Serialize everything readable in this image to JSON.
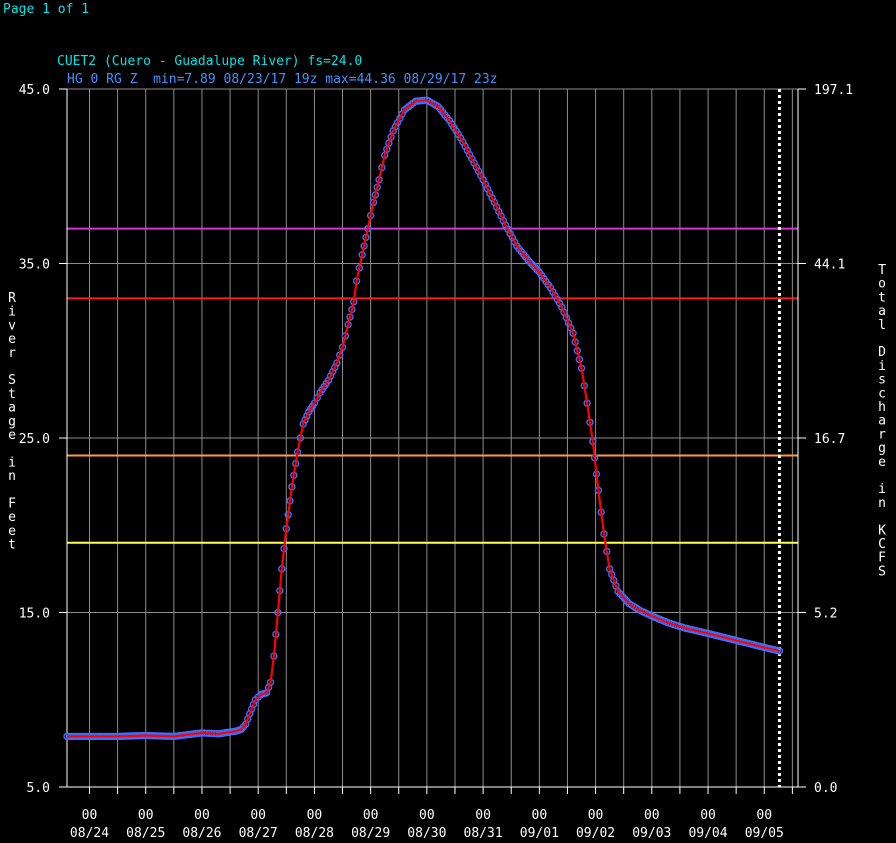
{
  "page_label": "Page 1 of 1",
  "chart_data": {
    "type": "line",
    "title": "CUET2 (Cuero - Guadalupe River) fs=24.0",
    "subtitle": "HG 0 RG Z  min=7.89 08/23/17 19z max=44.36 08/29/17 23z",
    "ylabel": "River Stage in Feet",
    "y2label": "Total Discharge in KCFS",
    "ylim": [
      5.0,
      45.0
    ],
    "y_ticks": [
      "5.0",
      "15.0",
      "25.0",
      "35.0",
      "45.0"
    ],
    "y2_ticks": [
      "0.0",
      "5.2",
      "16.7",
      "44.1",
      "197.1"
    ],
    "x_units": "days since 08/24 00z",
    "xlim": [
      -0.4,
      12.6
    ],
    "x_ticks": [
      {
        "hour": "00",
        "date": "08/24"
      },
      {
        "hour": "00",
        "date": "08/25"
      },
      {
        "hour": "00",
        "date": "08/26"
      },
      {
        "hour": "00",
        "date": "08/27"
      },
      {
        "hour": "00",
        "date": "08/28"
      },
      {
        "hour": "00",
        "date": "08/29"
      },
      {
        "hour": "00",
        "date": "08/30"
      },
      {
        "hour": "00",
        "date": "08/31"
      },
      {
        "hour": "00",
        "date": "09/01"
      },
      {
        "hour": "00",
        "date": "09/02"
      },
      {
        "hour": "00",
        "date": "09/03"
      },
      {
        "hour": "00",
        "date": "09/04"
      },
      {
        "hour": "00",
        "date": "09/05"
      }
    ],
    "thresholds": [
      {
        "value": 37.0,
        "color": "#d633d6"
      },
      {
        "value": 33.0,
        "color": "#ff1a1a"
      },
      {
        "value": 24.0,
        "color": "#ff9a40"
      },
      {
        "value": 19.0,
        "color": "#ffff55"
      }
    ],
    "current_time_x": 12.27,
    "grid": true,
    "series": [
      {
        "line_color": "#ff0000",
        "marker_color": "#3f6fff",
        "points": [
          [
            -0.4,
            7.9
          ],
          [
            0.5,
            7.9
          ],
          [
            1.0,
            7.95
          ],
          [
            1.5,
            7.9
          ],
          [
            2.0,
            8.1
          ],
          [
            2.3,
            8.05
          ],
          [
            2.6,
            8.2
          ],
          [
            2.7,
            8.3
          ],
          [
            2.78,
            8.6
          ],
          [
            2.85,
            9.2
          ],
          [
            2.95,
            10.0
          ],
          [
            3.05,
            10.3
          ],
          [
            3.15,
            10.4
          ],
          [
            3.22,
            11.0
          ],
          [
            3.28,
            12.5
          ],
          [
            3.35,
            15.0
          ],
          [
            3.42,
            17.5
          ],
          [
            3.5,
            19.8
          ],
          [
            3.6,
            22.2
          ],
          [
            3.7,
            24.2
          ],
          [
            3.8,
            25.8
          ],
          [
            3.9,
            26.5
          ],
          [
            4.0,
            27.0
          ],
          [
            4.1,
            27.6
          ],
          [
            4.25,
            28.3
          ],
          [
            4.4,
            29.3
          ],
          [
            4.5,
            30.2
          ],
          [
            4.6,
            31.5
          ],
          [
            4.7,
            32.8
          ],
          [
            4.75,
            34.0
          ],
          [
            4.85,
            35.5
          ],
          [
            4.95,
            37.0
          ],
          [
            5.05,
            38.5
          ],
          [
            5.15,
            39.8
          ],
          [
            5.25,
            41.2
          ],
          [
            5.4,
            42.6
          ],
          [
            5.6,
            43.8
          ],
          [
            5.8,
            44.3
          ],
          [
            6.0,
            44.36
          ],
          [
            6.2,
            44.0
          ],
          [
            6.4,
            43.2
          ],
          [
            6.6,
            42.2
          ],
          [
            6.8,
            41.0
          ],
          [
            7.0,
            39.8
          ],
          [
            7.2,
            38.5
          ],
          [
            7.4,
            37.2
          ],
          [
            7.6,
            36.0
          ],
          [
            7.8,
            35.2
          ],
          [
            8.0,
            34.5
          ],
          [
            8.2,
            33.6
          ],
          [
            8.4,
            32.5
          ],
          [
            8.6,
            31.0
          ],
          [
            8.75,
            29.0
          ],
          [
            8.85,
            27.0
          ],
          [
            8.95,
            24.8
          ],
          [
            9.05,
            22.0
          ],
          [
            9.15,
            19.5
          ],
          [
            9.25,
            17.5
          ],
          [
            9.4,
            16.2
          ],
          [
            9.6,
            15.5
          ],
          [
            9.8,
            15.1
          ],
          [
            10.0,
            14.8
          ],
          [
            10.3,
            14.4
          ],
          [
            10.6,
            14.1
          ],
          [
            11.0,
            13.8
          ],
          [
            11.5,
            13.4
          ],
          [
            12.0,
            13.0
          ],
          [
            12.27,
            12.8
          ]
        ]
      }
    ]
  }
}
